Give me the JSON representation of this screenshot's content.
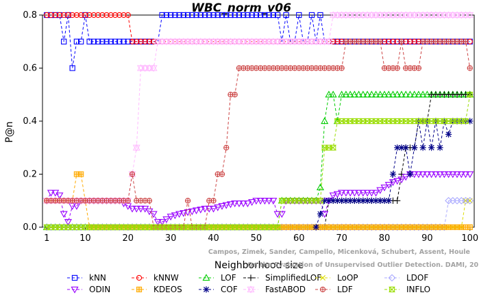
{
  "chart_data": {
    "type": "line",
    "title": "WBC_norm_v06",
    "xlabel": "Neighborhood size",
    "ylabel": "P@n",
    "xlim": [
      0,
      101
    ],
    "ylim": [
      0,
      0.8
    ],
    "xticks": [
      1,
      10,
      20,
      30,
      40,
      50,
      60,
      70,
      80,
      90,
      100
    ],
    "yticks": [
      0.0,
      0.2,
      0.4,
      0.6,
      0.8
    ],
    "grid": false,
    "legend_position": "bottom",
    "series": [
      {
        "name": "kNN",
        "color": "#0000ff",
        "marker": "square",
        "points": [
          [
            1,
            0.8
          ],
          [
            3,
            0.8
          ],
          [
            4,
            0.8
          ],
          [
            5,
            0.7
          ],
          [
            6,
            0.8
          ],
          [
            7,
            0.6
          ],
          [
            8,
            0.7
          ],
          [
            9,
            0.7
          ],
          [
            10,
            0.8
          ],
          [
            11,
            0.7
          ],
          [
            12,
            0.7
          ],
          [
            13,
            0.7
          ],
          [
            14,
            0.7
          ],
          [
            15,
            0.7
          ],
          [
            16,
            0.7
          ],
          [
            17,
            0.7
          ],
          [
            18,
            0.7
          ],
          [
            19,
            0.7
          ],
          [
            20,
            0.7
          ],
          [
            21,
            0.7
          ],
          [
            22,
            0.7
          ],
          [
            23,
            0.7
          ],
          [
            24,
            0.7
          ],
          [
            25,
            0.7
          ],
          [
            26,
            0.7
          ],
          [
            27,
            0.7
          ],
          [
            28,
            0.8
          ],
          [
            30,
            0.8
          ],
          [
            40,
            0.8
          ],
          [
            50,
            0.8
          ],
          [
            55,
            0.8
          ],
          [
            56,
            0.7
          ],
          [
            57,
            0.8
          ],
          [
            58,
            0.7
          ],
          [
            59,
            0.7
          ],
          [
            60,
            0.8
          ],
          [
            61,
            0.7
          ],
          [
            62,
            0.7
          ],
          [
            63,
            0.8
          ],
          [
            64,
            0.7
          ],
          [
            65,
            0.8
          ],
          [
            66,
            0.7
          ],
          [
            70,
            0.7
          ],
          [
            80,
            0.7
          ],
          [
            90,
            0.7
          ],
          [
            100,
            0.7
          ]
        ]
      },
      {
        "name": "kNNW",
        "color": "#ff0000",
        "marker": "circle",
        "points": [
          [
            1,
            0.8
          ],
          [
            10,
            0.8
          ],
          [
            18,
            0.8
          ],
          [
            20,
            0.8
          ],
          [
            21,
            0.7
          ],
          [
            30,
            0.7
          ],
          [
            40,
            0.7
          ],
          [
            50,
            0.7
          ],
          [
            60,
            0.7
          ],
          [
            70,
            0.7
          ],
          [
            80,
            0.7
          ],
          [
            90,
            0.7
          ],
          [
            100,
            0.7
          ]
        ]
      },
      {
        "name": "LOF",
        "color": "#00cc00",
        "marker": "triangle",
        "points": [
          [
            1,
            0.0
          ],
          [
            20,
            0.0
          ],
          [
            40,
            0.0
          ],
          [
            55,
            0.0
          ],
          [
            56,
            0.1
          ],
          [
            60,
            0.1
          ],
          [
            64,
            0.1
          ],
          [
            65,
            0.15
          ],
          [
            66,
            0.4
          ],
          [
            67,
            0.5
          ],
          [
            68,
            0.5
          ],
          [
            69,
            0.4
          ],
          [
            70,
            0.5
          ],
          [
            80,
            0.5
          ],
          [
            90,
            0.5
          ],
          [
            100,
            0.5
          ]
        ]
      },
      {
        "name": "SimplifiedLOF",
        "color": "#000000",
        "marker": "plus",
        "points": [
          [
            55,
            0.0
          ],
          [
            60,
            0.0
          ],
          [
            62,
            0.0
          ],
          [
            66,
            0.0
          ],
          [
            67,
            0.1
          ],
          [
            70,
            0.1
          ],
          [
            80,
            0.1
          ],
          [
            82,
            0.1
          ],
          [
            83,
            0.1
          ],
          [
            84,
            0.2
          ],
          [
            85,
            0.3
          ],
          [
            86,
            0.3
          ],
          [
            87,
            0.3
          ],
          [
            88,
            0.4
          ],
          [
            89,
            0.4
          ],
          [
            90,
            0.4
          ],
          [
            91,
            0.5
          ],
          [
            92,
            0.5
          ],
          [
            93,
            0.5
          ],
          [
            94,
            0.5
          ],
          [
            95,
            0.5
          ],
          [
            96,
            0.5
          ],
          [
            97,
            0.5
          ],
          [
            98,
            0.5
          ],
          [
            99,
            0.5
          ],
          [
            100,
            0.5
          ]
        ]
      },
      {
        "name": "LoOP",
        "color": "#dddd00",
        "marker": "x",
        "points": [
          [
            1,
            0.0
          ],
          [
            10,
            0.0
          ],
          [
            20,
            0.0
          ],
          [
            40,
            0.0
          ],
          [
            60,
            0.0
          ],
          [
            80,
            0.0
          ],
          [
            90,
            0.0
          ],
          [
            95,
            0.0
          ],
          [
            98,
            0.0
          ],
          [
            99,
            0.1
          ],
          [
            100,
            0.1
          ]
        ]
      },
      {
        "name": "LDOF",
        "color": "#aaaaff",
        "marker": "diamond",
        "points": [
          [
            1,
            0.0
          ],
          [
            20,
            0.0
          ],
          [
            40,
            0.0
          ],
          [
            60,
            0.0
          ],
          [
            80,
            0.0
          ],
          [
            90,
            0.0
          ],
          [
            94,
            0.0
          ],
          [
            95,
            0.1
          ],
          [
            96,
            0.1
          ],
          [
            97,
            0.1
          ],
          [
            98,
            0.1
          ],
          [
            99,
            0.1
          ],
          [
            100,
            0.1
          ]
        ]
      },
      {
        "name": "ODIN",
        "color": "#9900ff",
        "marker": "triangle-down",
        "points": [
          [
            1,
            0.1
          ],
          [
            2,
            0.13
          ],
          [
            3,
            0.13
          ],
          [
            4,
            0.12
          ],
          [
            5,
            0.05
          ],
          [
            6,
            0.02
          ],
          [
            7,
            0.08
          ],
          [
            8,
            0.08
          ],
          [
            9,
            0.1
          ],
          [
            10,
            0.1
          ],
          [
            12,
            0.1
          ],
          [
            15,
            0.1
          ],
          [
            18,
            0.1
          ],
          [
            20,
            0.08
          ],
          [
            21,
            0.07
          ],
          [
            22,
            0.07
          ],
          [
            24,
            0.07
          ],
          [
            26,
            0.05
          ],
          [
            27,
            0.02
          ],
          [
            28,
            0.02
          ],
          [
            29,
            0.03
          ],
          [
            30,
            0.04
          ],
          [
            32,
            0.05
          ],
          [
            35,
            0.06
          ],
          [
            38,
            0.07
          ],
          [
            40,
            0.07
          ],
          [
            42,
            0.08
          ],
          [
            45,
            0.09
          ],
          [
            48,
            0.09
          ],
          [
            50,
            0.1
          ],
          [
            52,
            0.1
          ],
          [
            54,
            0.1
          ],
          [
            55,
            0.05
          ],
          [
            56,
            0.05
          ],
          [
            57,
            0.1
          ],
          [
            60,
            0.1
          ],
          [
            64,
            0.1
          ],
          [
            65,
            0.1
          ],
          [
            66,
            0.05
          ],
          [
            67,
            0.1
          ],
          [
            68,
            0.12
          ],
          [
            70,
            0.13
          ],
          [
            75,
            0.13
          ],
          [
            78,
            0.13
          ],
          [
            80,
            0.15
          ],
          [
            82,
            0.17
          ],
          [
            84,
            0.18
          ],
          [
            85,
            0.19
          ],
          [
            86,
            0.2
          ],
          [
            90,
            0.2
          ],
          [
            95,
            0.2
          ],
          [
            100,
            0.2
          ]
        ]
      },
      {
        "name": "KDEOS",
        "color": "#ffaa00",
        "marker": "square-filled",
        "points": [
          [
            1,
            0.1
          ],
          [
            3,
            0.1
          ],
          [
            5,
            0.1
          ],
          [
            6,
            0.1
          ],
          [
            7,
            0.1
          ],
          [
            8,
            0.2
          ],
          [
            9,
            0.2
          ],
          [
            10,
            0.1
          ],
          [
            11,
            0.0
          ],
          [
            20,
            0.0
          ],
          [
            40,
            0.0
          ],
          [
            60,
            0.0
          ],
          [
            80,
            0.0
          ],
          [
            100,
            0.0
          ]
        ]
      },
      {
        "name": "COF",
        "color": "#000088",
        "marker": "asterisk",
        "points": [
          [
            64,
            0.0
          ],
          [
            65,
            0.05
          ],
          [
            66,
            0.1
          ],
          [
            68,
            0.1
          ],
          [
            70,
            0.1
          ],
          [
            75,
            0.1
          ],
          [
            78,
            0.1
          ],
          [
            80,
            0.1
          ],
          [
            81,
            0.1
          ],
          [
            82,
            0.2
          ],
          [
            83,
            0.3
          ],
          [
            84,
            0.3
          ],
          [
            85,
            0.3
          ],
          [
            86,
            0.2
          ],
          [
            87,
            0.3
          ],
          [
            88,
            0.4
          ],
          [
            89,
            0.3
          ],
          [
            90,
            0.4
          ],
          [
            91,
            0.3
          ],
          [
            92,
            0.4
          ],
          [
            93,
            0.3
          ],
          [
            94,
            0.4
          ],
          [
            95,
            0.35
          ],
          [
            96,
            0.4
          ],
          [
            97,
            0.4
          ],
          [
            98,
            0.4
          ],
          [
            99,
            0.4
          ],
          [
            100,
            0.4
          ]
        ]
      },
      {
        "name": "FastABOD",
        "color": "#ffbbff",
        "marker": "triangle-filled",
        "points": [
          [
            1,
            0.1
          ],
          [
            10,
            0.1
          ],
          [
            20,
            0.1
          ],
          [
            21,
            0.2
          ],
          [
            22,
            0.3
          ],
          [
            23,
            0.6
          ],
          [
            24,
            0.6
          ],
          [
            25,
            0.6
          ],
          [
            26,
            0.6
          ],
          [
            27,
            0.7
          ],
          [
            30,
            0.7
          ],
          [
            40,
            0.7
          ],
          [
            50,
            0.7
          ],
          [
            60,
            0.7
          ],
          [
            66,
            0.7
          ],
          [
            67,
            0.7
          ],
          [
            68,
            0.8
          ],
          [
            70,
            0.8
          ],
          [
            80,
            0.8
          ],
          [
            90,
            0.8
          ],
          [
            100,
            0.8
          ]
        ]
      },
      {
        "name": "LDF",
        "color": "#cc4444",
        "marker": "circle-plus",
        "points": [
          [
            1,
            0.1
          ],
          [
            10,
            0.1
          ],
          [
            20,
            0.1
          ],
          [
            21,
            0.2
          ],
          [
            22,
            0.1
          ],
          [
            23,
            0.1
          ],
          [
            24,
            0.1
          ],
          [
            25,
            0.1
          ],
          [
            26,
            0.0
          ],
          [
            30,
            0.0
          ],
          [
            33,
            0.0
          ],
          [
            34,
            0.1
          ],
          [
            35,
            0.0
          ],
          [
            38,
            0.0
          ],
          [
            39,
            0.1
          ],
          [
            40,
            0.1
          ],
          [
            41,
            0.2
          ],
          [
            42,
            0.2
          ],
          [
            43,
            0.3
          ],
          [
            44,
            0.5
          ],
          [
            45,
            0.5
          ],
          [
            46,
            0.6
          ],
          [
            50,
            0.6
          ],
          [
            60,
            0.6
          ],
          [
            70,
            0.6
          ],
          [
            71,
            0.7
          ],
          [
            75,
            0.7
          ],
          [
            79,
            0.7
          ],
          [
            80,
            0.6
          ],
          [
            82,
            0.6
          ],
          [
            83,
            0.6
          ],
          [
            84,
            0.7
          ],
          [
            85,
            0.6
          ],
          [
            86,
            0.6
          ],
          [
            87,
            0.6
          ],
          [
            88,
            0.6
          ],
          [
            89,
            0.7
          ],
          [
            90,
            0.7
          ],
          [
            95,
            0.7
          ],
          [
            99,
            0.7
          ],
          [
            100,
            0.6
          ]
        ]
      },
      {
        "name": "INFLO",
        "color": "#99dd00",
        "marker": "hourglass",
        "points": [
          [
            1,
            0.0
          ],
          [
            20,
            0.0
          ],
          [
            40,
            0.0
          ],
          [
            55,
            0.0
          ],
          [
            56,
            0.1
          ],
          [
            60,
            0.1
          ],
          [
            64,
            0.1
          ],
          [
            65,
            0.1
          ],
          [
            66,
            0.3
          ],
          [
            67,
            0.3
          ],
          [
            68,
            0.3
          ],
          [
            69,
            0.4
          ],
          [
            70,
            0.4
          ],
          [
            75,
            0.4
          ],
          [
            80,
            0.4
          ],
          [
            85,
            0.4
          ],
          [
            90,
            0.4
          ],
          [
            95,
            0.4
          ],
          [
            99,
            0.4
          ],
          [
            100,
            0.5
          ]
        ]
      }
    ],
    "annotations": [
      "Campos, Zimek, Sander, Campello, Micenková, Schubert, Assent, Houle",
      "On the Evaluation of Unsupervised Outlier Detection. DAMI, 2015."
    ]
  }
}
